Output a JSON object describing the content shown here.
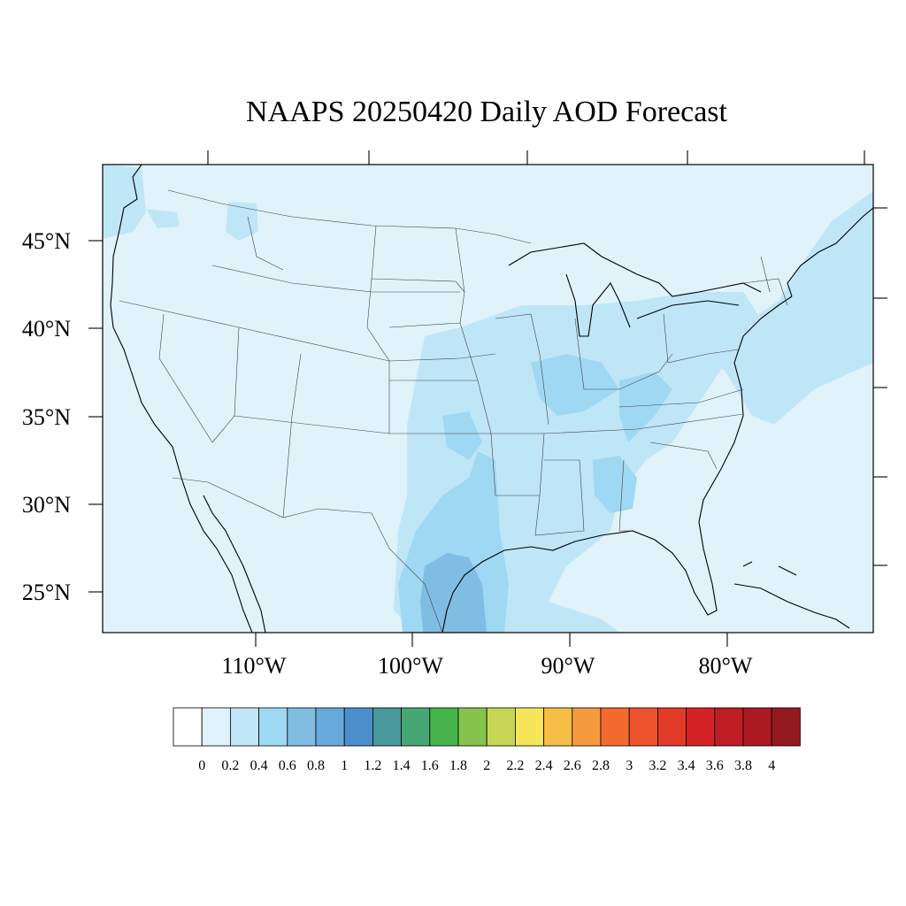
{
  "title": "NAAPS 20250420 Daily AOD Forecast",
  "map": {
    "lat_labels": [
      "45°N",
      "40°N",
      "35°N",
      "30°N",
      "25°N"
    ],
    "lon_labels": [
      "110°W",
      "100°W",
      "90°W",
      "80°W"
    ],
    "background_aod_color": "#e0f3fa",
    "outline_color": "#000000"
  },
  "colorbar": {
    "labels": [
      "0",
      "0.2",
      "0.4",
      "0.6",
      "0.8",
      "1",
      "1.2",
      "1.4",
      "1.6",
      "1.8",
      "2",
      "2.2",
      "2.4",
      "2.6",
      "2.8",
      "3",
      "3.2",
      "3.4",
      "3.6",
      "3.8",
      "4"
    ],
    "colors": [
      "#ffffff",
      "#e0f3fa",
      "#bfe6f7",
      "#9fd8f3",
      "#80bde3",
      "#66a9da",
      "#4a8fcb",
      "#47999b",
      "#46a774",
      "#46b44a",
      "#86c34d",
      "#c6d654",
      "#f6e558",
      "#f6bd47",
      "#f69a3e",
      "#f46a2e",
      "#ec532d",
      "#e23b2a",
      "#d42227",
      "#bf1d24",
      "#ac1a21",
      "#941a1e"
    ]
  }
}
